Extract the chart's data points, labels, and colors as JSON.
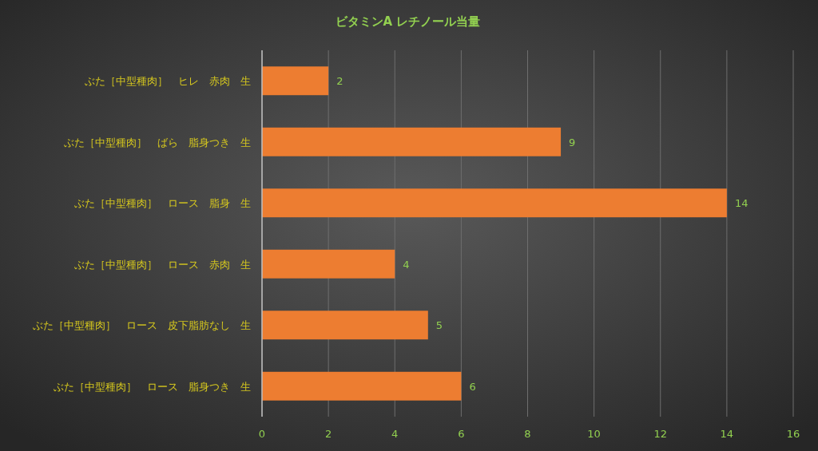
{
  "chart_data": {
    "type": "bar",
    "orientation": "horizontal",
    "title": "ビタミンA レチノール当量",
    "categories": [
      "ぶた［中型種肉］　ヒレ　赤肉　生",
      "ぶた［中型種肉］　ばら　脂身つき　生",
      "ぶた［中型種肉］　ロース　脂身　生",
      "ぶた［中型種肉］　ロース　赤肉　生",
      "ぶた［中型種肉］　ロース　皮下脂肪なし　生",
      "ぶた［中型種肉］　ロース　脂身つき　生"
    ],
    "values": [
      2,
      9,
      14,
      4,
      5,
      6
    ],
    "color": "#ed7d31",
    "xlim": [
      0,
      16
    ],
    "xticks": [
      0,
      2,
      4,
      6,
      8,
      10,
      12,
      14,
      16
    ],
    "grid": "x",
    "data_labels": true
  }
}
